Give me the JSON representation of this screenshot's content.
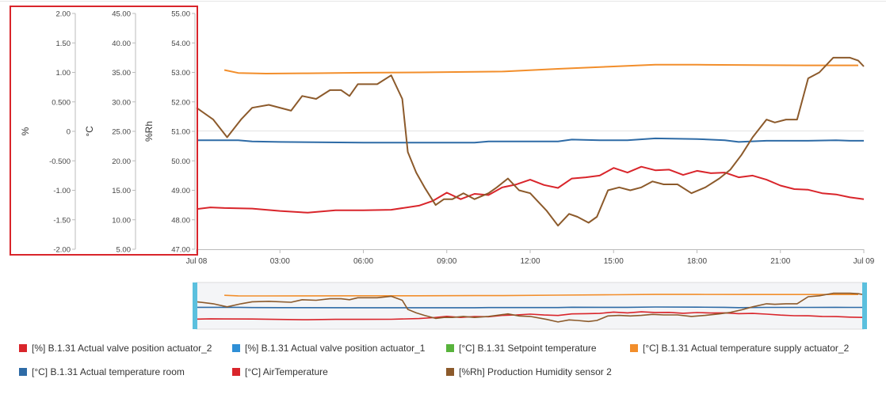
{
  "chart_data": {
    "type": "line",
    "x_range": [
      "Jul 08 00:00",
      "Jul 09 00:00"
    ],
    "x_tick_labels": [
      "Jul 08",
      "03:00",
      "06:00",
      "09:00",
      "12:00",
      "15:00",
      "18:00",
      "21:00",
      "Jul 09"
    ],
    "axes": [
      {
        "unit": "%",
        "ylim": [
          -2.0,
          2.0
        ],
        "tick_labels": [
          "2.00",
          "1.50",
          "1.00",
          "0.500",
          "0",
          "-0.500",
          "-1.00",
          "-1.50",
          "-2.00"
        ]
      },
      {
        "unit": "°C",
        "ylim": [
          5.0,
          45.0
        ],
        "tick_labels": [
          "45.00",
          "40.00",
          "35.00",
          "30.00",
          "25.00",
          "20.00",
          "15.00",
          "10.00",
          "5.00"
        ]
      },
      {
        "unit": "%Rh",
        "ylim": [
          47.0,
          55.0
        ],
        "tick_labels": [
          "55.00",
          "54.00",
          "53.00",
          "52.00",
          "51.00",
          "50.00",
          "49.00",
          "48.00",
          "47.00"
        ]
      }
    ],
    "series": [
      {
        "name": "[°C] B.1.31 Actual temperature supply actuator_2",
        "color": "#f28e2b",
        "axis": "°C",
        "hours": [
          1.0,
          1.5,
          2.5,
          4,
          6,
          8,
          10,
          11,
          13,
          15,
          16.5,
          18,
          20,
          22,
          23.8
        ],
        "values": [
          35.4,
          34.9,
          34.8,
          34.85,
          34.95,
          35.0,
          35.1,
          35.15,
          35.6,
          36.0,
          36.3,
          36.3,
          36.25,
          36.2,
          36.2
        ]
      },
      {
        "name": "[°C] B.1.31 Actual temperature room",
        "color": "#2e6ba6",
        "axis": "°C",
        "hours": [
          0,
          1.5,
          2,
          3,
          6,
          8,
          10,
          10.5,
          12,
          13,
          13.5,
          14.5,
          15.5,
          16.5,
          18,
          19,
          19.5,
          20.5,
          22,
          23,
          23.5,
          24
        ],
        "values": [
          23.5,
          23.5,
          23.3,
          23.2,
          23.1,
          23.1,
          23.1,
          23.3,
          23.3,
          23.3,
          23.6,
          23.5,
          23.5,
          23.8,
          23.7,
          23.5,
          23.2,
          23.4,
          23.4,
          23.5,
          23.4,
          23.4
        ]
      },
      {
        "name": "[°C] AirTemperature",
        "color": "#d9252b",
        "axis": "°C",
        "hours": [
          0,
          0.5,
          1,
          2,
          3,
          4,
          5,
          6,
          7,
          8,
          8.5,
          9,
          9.5,
          10,
          10.5,
          11,
          11.5,
          12,
          12.5,
          13,
          13.5,
          14,
          14.5,
          15,
          15.5,
          16,
          16.5,
          17,
          17.5,
          18,
          18.5,
          19,
          19.5,
          20,
          20.5,
          21,
          21.5,
          22,
          22.5,
          23,
          23.5,
          24
        ],
        "values": [
          11.8,
          12.1,
          12.0,
          11.9,
          11.5,
          11.2,
          11.6,
          11.6,
          11.7,
          12.4,
          13.2,
          14.6,
          13.5,
          14.4,
          14.2,
          15.5,
          16.0,
          16.8,
          15.9,
          15.4,
          17.0,
          17.2,
          17.5,
          18.8,
          18.0,
          19.0,
          18.4,
          18.5,
          17.6,
          18.3,
          17.9,
          18.0,
          17.2,
          17.5,
          16.8,
          15.8,
          15.2,
          15.1,
          14.5,
          14.3,
          13.8,
          13.5
        ]
      },
      {
        "name": "[%Rh] Production Humidity sensor 2",
        "color": "#8c5a2b",
        "axis": "%Rh",
        "hours": [
          0,
          0.6,
          1.1,
          1.6,
          2.0,
          2.6,
          3.4,
          3.8,
          4.3,
          4.8,
          5.2,
          5.5,
          5.8,
          6.1,
          6.5,
          7.0,
          7.4,
          7.6,
          7.9,
          8.2,
          8.6,
          8.9,
          9.2,
          9.6,
          10.0,
          10.5,
          10.8,
          11.2,
          11.6,
          12.0,
          12.6,
          13.0,
          13.4,
          13.7,
          14.1,
          14.4,
          14.8,
          15.2,
          15.6,
          16.0,
          16.4,
          16.8,
          17.3,
          17.8,
          18.3,
          18.8,
          19.2,
          19.6,
          20.0,
          20.5,
          20.8,
          21.2,
          21.6,
          22.0,
          22.4,
          22.9,
          23.5,
          23.8,
          24.0
        ],
        "values": [
          51.8,
          51.4,
          50.8,
          51.4,
          51.8,
          51.9,
          51.7,
          52.2,
          52.1,
          52.4,
          52.4,
          52.2,
          52.6,
          52.6,
          52.6,
          52.9,
          52.1,
          50.3,
          49.6,
          49.1,
          48.5,
          48.7,
          48.7,
          48.9,
          48.7,
          48.9,
          49.1,
          49.4,
          49.0,
          48.9,
          48.3,
          47.8,
          48.2,
          48.1,
          47.9,
          48.1,
          49.0,
          49.1,
          49.0,
          49.1,
          49.3,
          49.2,
          49.2,
          48.9,
          49.1,
          49.4,
          49.7,
          50.2,
          50.8,
          51.4,
          51.3,
          51.4,
          51.4,
          52.8,
          53.0,
          53.5,
          53.5,
          53.4,
          53.2
        ]
      }
    ],
    "legend_placement": "bottom",
    "navigator": true
  },
  "legend": [
    {
      "label": "[%] B.1.31 Actual valve position actuator_2",
      "color": "#d9252b"
    },
    {
      "label": "[%] B.1.31 Actual valve position actuator_1",
      "color": "#2e8fd6"
    },
    {
      "label": "[°C] B.1.31 Setpoint temperature",
      "color": "#58b33c"
    },
    {
      "label": "[°C] B.1.31 Actual temperature supply actuator_2",
      "color": "#f28e2b"
    },
    {
      "label": "[°C] B.1.31 Actual temperature room",
      "color": "#2e6ba6"
    },
    {
      "label": "[°C] AirTemperature",
      "color": "#d9252b"
    },
    {
      "label": "[%Rh] Production Humidity sensor 2",
      "color": "#8c5a2b"
    }
  ],
  "colors": {
    "highlight_border": "#d9252b",
    "navigator_handle": "#5bc0de",
    "axis": "#888888"
  }
}
